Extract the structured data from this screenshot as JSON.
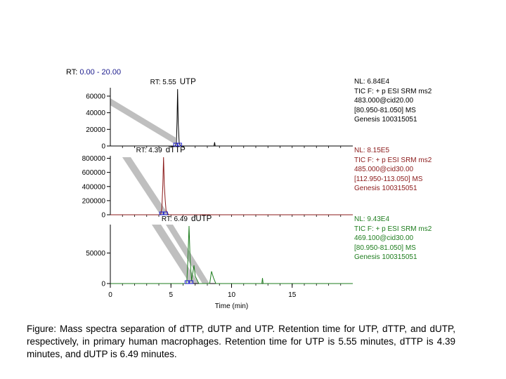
{
  "header": {
    "rt_label": "RT:",
    "rt_range": "0.00 - 20.00"
  },
  "chart_data": {
    "type": "line",
    "xlabel": "Time (min)",
    "xlim": [
      0,
      20
    ],
    "xticks": [
      0,
      5,
      10,
      15
    ],
    "panels": [
      {
        "name": "UTP",
        "color": "#000000",
        "rt": "5.55",
        "rt_label": "RT: 5.55",
        "ylim": [
          0,
          68400
        ],
        "yticks": [
          0,
          20000,
          40000,
          60000
        ],
        "ytick_labels": [
          "0",
          "20000",
          "40000",
          "60000"
        ],
        "series": [
          {
            "x": 0,
            "y": 0
          },
          {
            "x": 5.35,
            "y": 0
          },
          {
            "x": 5.45,
            "y": 3000
          },
          {
            "x": 5.5,
            "y": 30000
          },
          {
            "x": 5.55,
            "y": 68400
          },
          {
            "x": 5.6,
            "y": 28000
          },
          {
            "x": 5.68,
            "y": 3000
          },
          {
            "x": 5.8,
            "y": 0
          },
          {
            "x": 8.55,
            "y": 0
          },
          {
            "x": 8.6,
            "y": 4500
          },
          {
            "x": 8.65,
            "y": 0
          },
          {
            "x": 20,
            "y": 0
          }
        ],
        "info": {
          "nl": "NL: 6.84E4",
          "line1": "TIC F: + p ESI SRM ms2",
          "line2": "483.000@cid20.00",
          "line3": "[80.950-81.050]  MS",
          "line4": "Genesis 100315051"
        }
      },
      {
        "name": "dTTP",
        "color": "#8b1a1a",
        "rt": "4.39",
        "rt_label": "RT: 4.39",
        "ylim": [
          0,
          815000
        ],
        "yticks": [
          0,
          200000,
          400000,
          600000,
          800000
        ],
        "ytick_labels": [
          "0",
          "200000",
          "400000",
          "600000",
          "800000"
        ],
        "series": [
          {
            "x": 0,
            "y": 0
          },
          {
            "x": 4.15,
            "y": 0
          },
          {
            "x": 4.25,
            "y": 90000
          },
          {
            "x": 4.33,
            "y": 420000
          },
          {
            "x": 4.39,
            "y": 815000
          },
          {
            "x": 4.45,
            "y": 420000
          },
          {
            "x": 4.52,
            "y": 220000
          },
          {
            "x": 4.6,
            "y": 60000
          },
          {
            "x": 4.8,
            "y": 0
          },
          {
            "x": 20,
            "y": 0
          }
        ],
        "info": {
          "nl": "NL: 8.15E5",
          "line1": "TIC F: + p ESI SRM ms2",
          "line2": "485.000@cid30.00",
          "line3": "[112.950-113.050]  MS",
          "line4": "Genesis 100315051"
        }
      },
      {
        "name": "dUTP",
        "color": "#1e7d1e",
        "rt": "6.49",
        "rt_label": "RT: 6.49",
        "ylim": [
          0,
          94300
        ],
        "yticks": [
          0,
          50000
        ],
        "ytick_labels": [
          "0",
          "50000"
        ],
        "series": [
          {
            "x": 0,
            "y": 0
          },
          {
            "x": 6.3,
            "y": 0
          },
          {
            "x": 6.4,
            "y": 40000
          },
          {
            "x": 6.49,
            "y": 94300
          },
          {
            "x": 6.58,
            "y": 40000
          },
          {
            "x": 6.7,
            "y": 5000
          },
          {
            "x": 6.9,
            "y": 30000
          },
          {
            "x": 7.0,
            "y": 12000
          },
          {
            "x": 7.3,
            "y": 0
          },
          {
            "x": 8.2,
            "y": 0
          },
          {
            "x": 8.35,
            "y": 20000
          },
          {
            "x": 8.5,
            "y": 10000
          },
          {
            "x": 8.7,
            "y": 0
          },
          {
            "x": 12.5,
            "y": 0
          },
          {
            "x": 12.55,
            "y": 9000
          },
          {
            "x": 12.6,
            "y": 0
          },
          {
            "x": 20,
            "y": 0
          }
        ],
        "info": {
          "nl": "NL: 9.43E4",
          "line1": "TIC F: + p ESI SRM ms2",
          "line2": "469.100@cid30.00",
          "line3": "[80.950-81.050]  MS",
          "line4": "Genesis 100315051"
        }
      }
    ]
  },
  "caption": "Figure:  Mass spectra separation of dTTP, dUTP and UTP. Retention time for UTP, dTTP, and dUTP, respectively, in primary human macrophages.  Retention time for UTP is 5.55 minutes, dTTP is 4.39 minutes, and dUTP is 6.49 minutes."
}
